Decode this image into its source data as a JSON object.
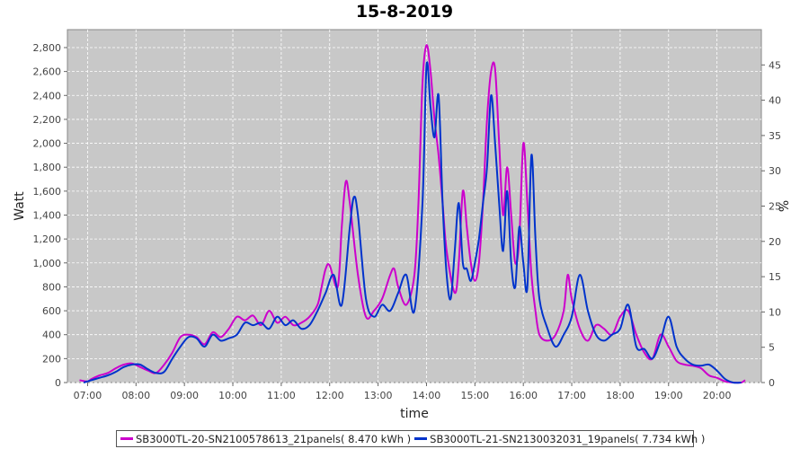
{
  "colors": {
    "series1": "#cc00cc",
    "series2": "#0033cc",
    "plot_bg": "#c8c8c8",
    "grid": "#ffffff"
  },
  "chart_data": {
    "type": "line",
    "title": "15-8-2019",
    "xlabel": "time",
    "ylabel": "Watt",
    "y2label": "%",
    "xlim": [
      "06:35",
      "20:55"
    ],
    "ylim": [
      0,
      2950
    ],
    "y2lim": [
      0,
      50
    ],
    "grid": true,
    "legend_position": "bottom",
    "x_ticks": [
      "07:00",
      "08:00",
      "09:00",
      "10:00",
      "11:00",
      "12:00",
      "13:00",
      "14:00",
      "15:00",
      "16:00",
      "17:00",
      "18:00",
      "19:00",
      "20:00"
    ],
    "y_ticks": [
      "0",
      "200",
      "400",
      "600",
      "800",
      "1,000",
      "1,200",
      "1,400",
      "1,600",
      "1,800",
      "2,000",
      "2,200",
      "2,400",
      "2,600",
      "2,800"
    ],
    "y2_ticks": [
      "0",
      "5",
      "10",
      "15",
      "20",
      "25",
      "30",
      "35",
      "40",
      "45"
    ],
    "series": [
      {
        "name": "SB3000TL-20-SN2100578613_21panels( 8.470 kWh )",
        "x": [
          "06:50",
          "07:00",
          "07:05",
          "07:15",
          "07:25",
          "07:35",
          "07:45",
          "07:55",
          "08:05",
          "08:15",
          "08:25",
          "08:35",
          "08:45",
          "08:55",
          "09:05",
          "09:15",
          "09:25",
          "09:35",
          "09:45",
          "09:55",
          "10:05",
          "10:15",
          "10:25",
          "10:35",
          "10:45",
          "10:55",
          "11:05",
          "11:15",
          "11:25",
          "11:35",
          "11:45",
          "11:50",
          "11:55",
          "12:00",
          "12:10",
          "12:15",
          "12:20",
          "12:25",
          "12:35",
          "12:45",
          "12:55",
          "13:05",
          "13:15",
          "13:20",
          "13:25",
          "13:35",
          "13:45",
          "13:50",
          "13:55",
          "14:00",
          "14:05",
          "14:10",
          "14:15",
          "14:20",
          "14:25",
          "14:35",
          "14:40",
          "14:45",
          "14:50",
          "14:55",
          "15:00",
          "15:05",
          "15:10",
          "15:15",
          "15:20",
          "15:25",
          "15:30",
          "15:35",
          "15:40",
          "15:45",
          "15:50",
          "15:55",
          "16:00",
          "16:05",
          "16:10",
          "16:15",
          "16:20",
          "16:30",
          "16:40",
          "16:50",
          "16:55",
          "17:00",
          "17:10",
          "17:20",
          "17:30",
          "17:40",
          "17:50",
          "18:00",
          "18:10",
          "18:20",
          "18:30",
          "18:40",
          "18:50",
          "19:00",
          "19:10",
          "19:20",
          "19:30",
          "19:40",
          "19:50",
          "20:00",
          "20:10",
          "20:20",
          "20:30",
          "20:35"
        ],
        "values": [
          20,
          10,
          30,
          60,
          80,
          120,
          150,
          160,
          130,
          100,
          80,
          150,
          250,
          380,
          400,
          380,
          320,
          420,
          380,
          450,
          550,
          520,
          560,
          480,
          600,
          500,
          550,
          480,
          500,
          550,
          650,
          800,
          950,
          980,
          800,
          1300,
          1680,
          1500,
          900,
          550,
          600,
          700,
          900,
          950,
          800,
          650,
          900,
          1500,
          2500,
          2820,
          2600,
          2200,
          1900,
          1500,
          1100,
          750,
          1000,
          1600,
          1300,
          1000,
          850,
          1000,
          1500,
          2200,
          2600,
          2620,
          2000,
          1400,
          1800,
          1400,
          1000,
          1200,
          2000,
          1500,
          900,
          600,
          400,
          350,
          400,
          600,
          900,
          700,
          450,
          350,
          480,
          450,
          400,
          550,
          600,
          400,
          250,
          200,
          400,
          300,
          180,
          150,
          140,
          120,
          60,
          40,
          10,
          0,
          0,
          20
        ]
      },
      {
        "name": "SB3000TL-21-SN2130032031_19panels( 7.734 kWh )",
        "x": [
          "06:55",
          "07:05",
          "07:15",
          "07:25",
          "07:35",
          "07:45",
          "07:55",
          "08:05",
          "08:15",
          "08:25",
          "08:35",
          "08:45",
          "08:55",
          "09:05",
          "09:15",
          "09:25",
          "09:35",
          "09:45",
          "09:55",
          "10:05",
          "10:15",
          "10:25",
          "10:35",
          "10:45",
          "10:55",
          "11:05",
          "11:15",
          "11:25",
          "11:35",
          "11:45",
          "11:55",
          "12:05",
          "12:15",
          "12:25",
          "12:30",
          "12:35",
          "12:45",
          "12:55",
          "13:05",
          "13:15",
          "13:25",
          "13:35",
          "13:45",
          "13:55",
          "14:00",
          "14:05",
          "14:10",
          "14:15",
          "14:20",
          "14:25",
          "14:30",
          "14:35",
          "14:40",
          "14:45",
          "14:50",
          "14:55",
          "15:00",
          "15:05",
          "15:10",
          "15:15",
          "15:20",
          "15:25",
          "15:30",
          "15:35",
          "15:40",
          "15:45",
          "15:50",
          "15:55",
          "16:00",
          "16:05",
          "16:10",
          "16:15",
          "16:20",
          "16:30",
          "16:40",
          "16:50",
          "17:00",
          "17:10",
          "17:20",
          "17:30",
          "17:40",
          "17:50",
          "18:00",
          "18:10",
          "18:20",
          "18:30",
          "18:40",
          "18:50",
          "19:00",
          "19:10",
          "19:20",
          "19:30",
          "19:40",
          "19:50",
          "20:00",
          "20:10",
          "20:20",
          "20:30"
        ],
        "values": [
          0,
          20,
          40,
          60,
          90,
          130,
          150,
          150,
          110,
          80,
          90,
          200,
          300,
          380,
          370,
          300,
          400,
          350,
          370,
          400,
          500,
          480,
          500,
          450,
          550,
          480,
          520,
          450,
          480,
          600,
          750,
          900,
          650,
          1300,
          1550,
          1400,
          700,
          550,
          650,
          600,
          750,
          900,
          600,
          1500,
          2650,
          2300,
          2050,
          2400,
          1500,
          900,
          700,
          1100,
          1500,
          1000,
          950,
          850,
          1000,
          1200,
          1500,
          1800,
          2400,
          2000,
          1500,
          1100,
          1600,
          1000,
          800,
          1300,
          1000,
          800,
          1900,
          1200,
          700,
          450,
          300,
          400,
          550,
          900,
          600,
          400,
          350,
          400,
          450,
          650,
          300,
          280,
          200,
          350,
          550,
          300,
          200,
          150,
          140,
          150,
          100,
          30,
          0,
          0
        ]
      }
    ]
  },
  "legend": {
    "series1": "SB3000TL-20-SN2100578613_21panels( 8.470 kWh )",
    "series2": "SB3000TL-21-SN2130032031_19panels( 7.734 kWh )"
  }
}
